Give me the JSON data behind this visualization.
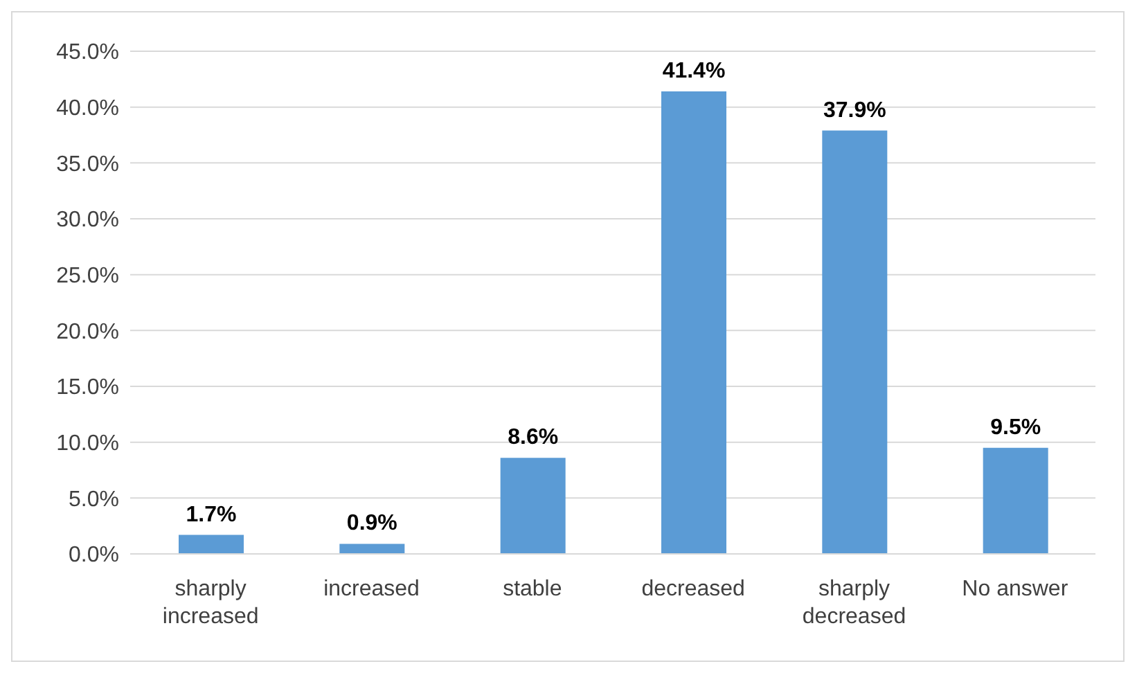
{
  "chart_data": {
    "type": "bar",
    "categories": [
      "sharply increased",
      "increased",
      "stable",
      "decreased",
      "sharply decreased",
      "No answer"
    ],
    "values": [
      1.7,
      0.9,
      8.6,
      41.4,
      37.9,
      9.5
    ],
    "value_labels": [
      "1.7%",
      "0.9%",
      "8.6%",
      "41.4%",
      "37.9%",
      "9.5%"
    ],
    "color": "#5b9bd5",
    "ylim": [
      0,
      45
    ],
    "yticks": [
      {
        "value": 0,
        "label": "0.0%"
      },
      {
        "value": 5,
        "label": "5.0%"
      },
      {
        "value": 10,
        "label": "10.0%"
      },
      {
        "value": 15,
        "label": "15.0%"
      },
      {
        "value": 20,
        "label": "20.0%"
      },
      {
        "value": 25,
        "label": "25.0%"
      },
      {
        "value": 30,
        "label": "30.0%"
      },
      {
        "value": 35,
        "label": "35.0%"
      },
      {
        "value": 40,
        "label": "40.0%"
      },
      {
        "value": 45,
        "label": "45.0%"
      }
    ],
    "grid": "y"
  }
}
